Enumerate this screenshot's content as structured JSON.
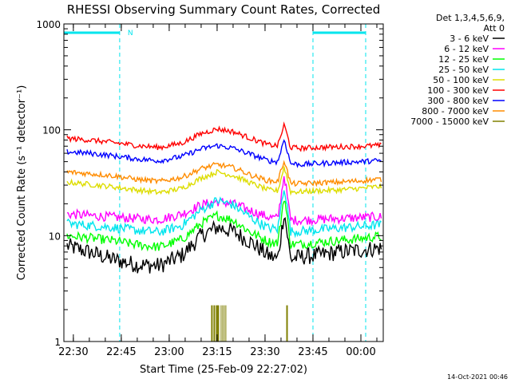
{
  "chart_data": {
    "type": "line",
    "title": "RHESSI Observing Summary Count Rates, Corrected",
    "xlabel": "Start Time (25-Feb-09 22:27:02)",
    "ylabel": "Corrected Count Rate (s⁻¹ detector⁻¹)",
    "y_scale": "log",
    "ylim": [
      1,
      1000
    ],
    "xlim": [
      "22:27:02",
      "00:07:00"
    ],
    "y_ticks": [
      "1",
      "10",
      "100",
      "1000"
    ],
    "x_ticks": [
      "22:30",
      "22:45",
      "23:00",
      "23:15",
      "23:30",
      "23:45",
      "00:00"
    ],
    "legend": {
      "placement": "top-right outside",
      "header": [
        "Det 1,3,4,5,6,9,",
        "Att 0"
      ]
    },
    "annotations": [
      {
        "text": "N",
        "x": "22:46",
        "color": "#00e5ee"
      }
    ],
    "intervals": [
      {
        "name": "night",
        "start": "22:27:02",
        "end": "22:44:30",
        "color": "#00e5ee"
      },
      {
        "name": "night",
        "start": "23:45:00",
        "end": "00:01:30",
        "color": "#00e5ee"
      }
    ],
    "series": [
      {
        "name": "3 - 6 keV",
        "color": "#000000",
        "x": [
          "22:28",
          "22:35",
          "22:42",
          "22:50",
          "22:57",
          "23:04",
          "23:10",
          "23:15",
          "23:20",
          "23:26",
          "23:31",
          "23:34",
          "23:36",
          "23:38",
          "23:41",
          "23:46",
          "23:53",
          "00:00",
          "00:05"
        ],
        "y": [
          8,
          7,
          6,
          5.3,
          5.2,
          6.5,
          10,
          12,
          11,
          8.5,
          6.5,
          6,
          17,
          6,
          6.3,
          6.5,
          7,
          7.3,
          7.6
        ]
      },
      {
        "name": "6 - 12 keV",
        "color": "#ff00ff",
        "x": [
          "22:28",
          "22:35",
          "22:42",
          "22:50",
          "22:57",
          "23:04",
          "23:10",
          "23:15",
          "23:20",
          "23:26",
          "23:31",
          "23:34",
          "23:36",
          "23:38",
          "23:41",
          "23:46",
          "23:53",
          "00:00",
          "00:05"
        ],
        "y": [
          16,
          15.5,
          15,
          14.5,
          14.2,
          16,
          19.5,
          21,
          20,
          17,
          15,
          14.5,
          38,
          14,
          14,
          14.2,
          14.5,
          14.8,
          15
        ]
      },
      {
        "name": "12 - 25 keV",
        "color": "#00ff00",
        "x": [
          "22:28",
          "22:35",
          "22:42",
          "22:50",
          "22:57",
          "23:04",
          "23:10",
          "23:15",
          "23:20",
          "23:26",
          "23:31",
          "23:34",
          "23:36",
          "23:38",
          "23:41",
          "23:46",
          "23:53",
          "00:00",
          "00:05"
        ],
        "y": [
          10,
          9.5,
          9,
          8.2,
          7.8,
          9.2,
          13,
          15.5,
          14,
          10.5,
          8.8,
          8.5,
          24,
          8.3,
          8.3,
          8.6,
          9,
          9.4,
          9.8
        ]
      },
      {
        "name": "25 - 50 keV",
        "color": "#00e5ee",
        "x": [
          "22:28",
          "22:35",
          "22:42",
          "22:50",
          "22:57",
          "23:04",
          "23:10",
          "23:15",
          "23:20",
          "23:26",
          "23:31",
          "23:34",
          "23:36",
          "23:38",
          "23:41",
          "23:46",
          "23:53",
          "00:00",
          "00:05"
        ],
        "y": [
          13,
          12.5,
          12,
          11.2,
          10.8,
          12.5,
          17.5,
          21.5,
          19.5,
          14.5,
          11.8,
          11.5,
          30,
          11,
          11,
          11.3,
          11.8,
          12.2,
          12.6
        ]
      },
      {
        "name": "50 - 100 keV",
        "color": "#dddd00",
        "x": [
          "22:28",
          "22:35",
          "22:42",
          "22:50",
          "22:57",
          "23:04",
          "23:10",
          "23:15",
          "23:20",
          "23:26",
          "23:31",
          "23:34",
          "23:36",
          "23:38",
          "23:41",
          "23:46",
          "23:53",
          "00:00",
          "00:05"
        ],
        "y": [
          32,
          30.5,
          29,
          27,
          25.5,
          28,
          35,
          40,
          37,
          31,
          27,
          26.5,
          45,
          26,
          26,
          26.5,
          27,
          28,
          29
        ]
      },
      {
        "name": "100 - 300 keV",
        "color": "#ff0000",
        "x": [
          "22:28",
          "22:35",
          "22:42",
          "22:50",
          "22:57",
          "23:04",
          "23:10",
          "23:15",
          "23:20",
          "23:26",
          "23:31",
          "23:34",
          "23:36",
          "23:38",
          "23:41",
          "23:46",
          "23:53",
          "00:00",
          "00:05"
        ],
        "y": [
          83,
          80,
          76,
          71,
          68,
          75,
          92,
          102,
          96,
          82,
          72,
          71,
          112,
          68,
          67,
          68,
          69,
          70,
          71
        ]
      },
      {
        "name": "300 - 800 keV",
        "color": "#0000ff",
        "x": [
          "22:28",
          "22:35",
          "22:42",
          "22:50",
          "22:57",
          "23:04",
          "23:10",
          "23:15",
          "23:20",
          "23:26",
          "23:31",
          "23:34",
          "23:36",
          "23:38",
          "23:41",
          "23:46",
          "23:53",
          "00:00",
          "00:05"
        ],
        "y": [
          62,
          60,
          57,
          53,
          51,
          56,
          66,
          71,
          67,
          58,
          51,
          50,
          82,
          48,
          47,
          48,
          49,
          50,
          51
        ]
      },
      {
        "name": "800 - 7000 keV",
        "color": "#ff8c00",
        "x": [
          "22:28",
          "22:35",
          "22:42",
          "22:50",
          "22:57",
          "23:04",
          "23:10",
          "23:15",
          "23:20",
          "23:26",
          "23:31",
          "23:34",
          "23:36",
          "23:38",
          "23:41",
          "23:46",
          "23:53",
          "00:00",
          "00:05"
        ],
        "y": [
          40,
          38.5,
          37,
          34,
          32.5,
          35.5,
          43,
          47,
          44,
          37,
          33,
          32.5,
          52,
          31,
          31,
          31.5,
          32,
          33,
          34
        ]
      },
      {
        "name": "7000 - 15000 keV",
        "color": "#808000",
        "x": [
          "23:13",
          "23:16",
          "23:18",
          "23:36",
          "23:37"
        ],
        "y": [
          2.2,
          2.2,
          2.2,
          2.2,
          2.2
        ]
      }
    ]
  },
  "footer": {
    "timestamp": "14-Oct-2021 00:46"
  }
}
